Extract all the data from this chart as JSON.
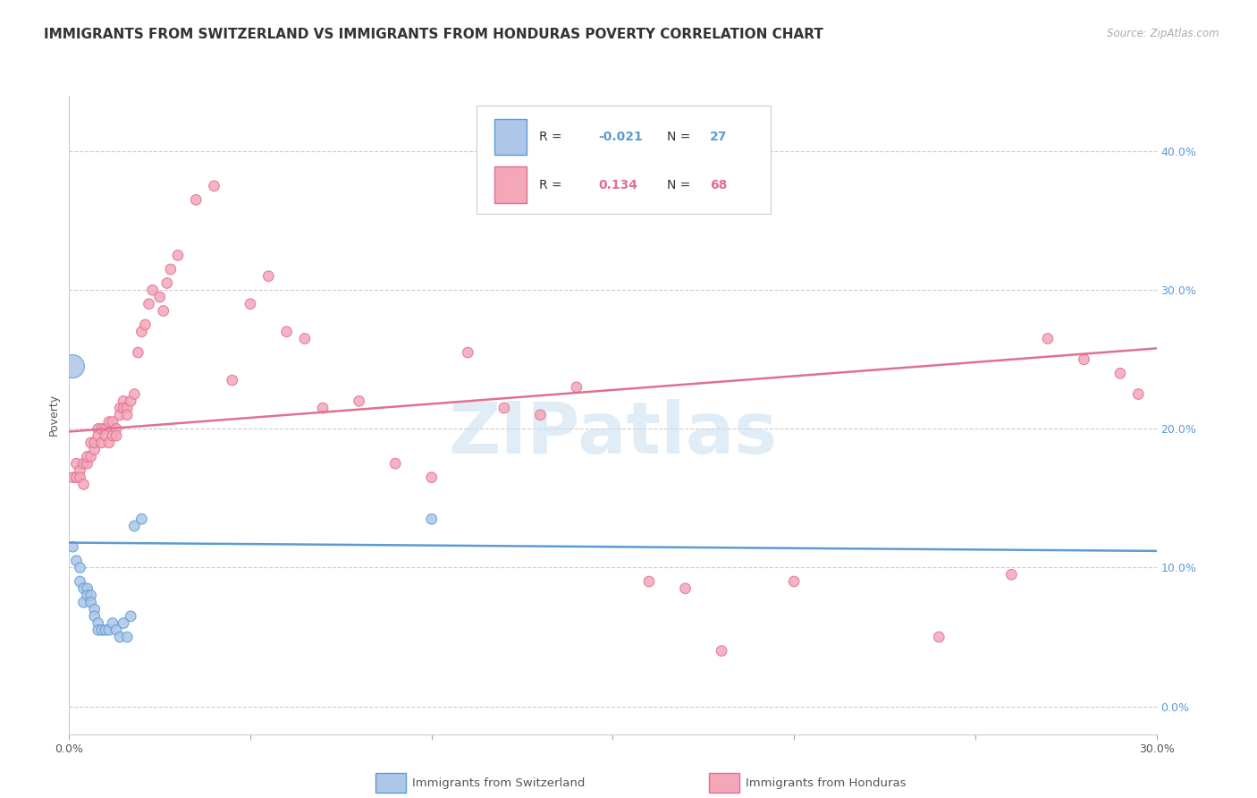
{
  "title": "IMMIGRANTS FROM SWITZERLAND VS IMMIGRANTS FROM HONDURAS POVERTY CORRELATION CHART",
  "source": "Source: ZipAtlas.com",
  "ylabel": "Poverty",
  "right_yticks": [
    "0.0%",
    "10.0%",
    "20.0%",
    "30.0%",
    "40.0%"
  ],
  "right_ytick_vals": [
    0.0,
    0.1,
    0.2,
    0.3,
    0.4
  ],
  "xlim": [
    0.0,
    0.3
  ],
  "ylim": [
    -0.02,
    0.44
  ],
  "watermark": "ZIPatlas",
  "blue_scatter_x": [
    0.001,
    0.002,
    0.003,
    0.003,
    0.004,
    0.004,
    0.005,
    0.005,
    0.006,
    0.006,
    0.007,
    0.007,
    0.008,
    0.008,
    0.009,
    0.01,
    0.011,
    0.012,
    0.013,
    0.014,
    0.015,
    0.016,
    0.017,
    0.018,
    0.02,
    0.001,
    0.1
  ],
  "blue_scatter_y": [
    0.115,
    0.105,
    0.1,
    0.09,
    0.085,
    0.075,
    0.085,
    0.08,
    0.08,
    0.075,
    0.07,
    0.065,
    0.06,
    0.055,
    0.055,
    0.055,
    0.055,
    0.06,
    0.055,
    0.05,
    0.06,
    0.05,
    0.065,
    0.13,
    0.135,
    0.245,
    0.135
  ],
  "blue_scatter_s": [
    70,
    70,
    70,
    70,
    70,
    70,
    70,
    70,
    70,
    70,
    70,
    70,
    70,
    70,
    70,
    70,
    70,
    70,
    70,
    70,
    70,
    70,
    70,
    70,
    70,
    350,
    70
  ],
  "pink_scatter_x": [
    0.001,
    0.002,
    0.002,
    0.003,
    0.003,
    0.004,
    0.004,
    0.005,
    0.005,
    0.006,
    0.006,
    0.007,
    0.007,
    0.008,
    0.008,
    0.009,
    0.009,
    0.01,
    0.01,
    0.011,
    0.011,
    0.012,
    0.012,
    0.013,
    0.013,
    0.014,
    0.014,
    0.015,
    0.015,
    0.016,
    0.016,
    0.017,
    0.018,
    0.019,
    0.02,
    0.021,
    0.022,
    0.023,
    0.025,
    0.026,
    0.027,
    0.028,
    0.03,
    0.035,
    0.04,
    0.045,
    0.05,
    0.055,
    0.06,
    0.065,
    0.07,
    0.08,
    0.09,
    0.1,
    0.11,
    0.12,
    0.13,
    0.14,
    0.16,
    0.17,
    0.18,
    0.2,
    0.24,
    0.26,
    0.27,
    0.28,
    0.29,
    0.295
  ],
  "pink_scatter_y": [
    0.165,
    0.175,
    0.165,
    0.17,
    0.165,
    0.16,
    0.175,
    0.175,
    0.18,
    0.18,
    0.19,
    0.185,
    0.19,
    0.2,
    0.195,
    0.2,
    0.19,
    0.2,
    0.195,
    0.205,
    0.19,
    0.205,
    0.195,
    0.2,
    0.195,
    0.215,
    0.21,
    0.22,
    0.215,
    0.215,
    0.21,
    0.22,
    0.225,
    0.255,
    0.27,
    0.275,
    0.29,
    0.3,
    0.295,
    0.285,
    0.305,
    0.315,
    0.325,
    0.365,
    0.375,
    0.235,
    0.29,
    0.31,
    0.27,
    0.265,
    0.215,
    0.22,
    0.175,
    0.165,
    0.255,
    0.215,
    0.21,
    0.23,
    0.09,
    0.085,
    0.04,
    0.09,
    0.05,
    0.095,
    0.265,
    0.25,
    0.24,
    0.225
  ],
  "pink_scatter_s": [
    70,
    70,
    70,
    70,
    70,
    70,
    70,
    70,
    70,
    70,
    70,
    70,
    70,
    70,
    70,
    70,
    70,
    70,
    70,
    70,
    70,
    70,
    70,
    70,
    70,
    70,
    70,
    70,
    70,
    70,
    70,
    70,
    70,
    70,
    70,
    70,
    70,
    70,
    70,
    70,
    70,
    70,
    70,
    70,
    70,
    70,
    70,
    70,
    70,
    70,
    70,
    70,
    70,
    70,
    70,
    70,
    70,
    70,
    70,
    70,
    70,
    70,
    70,
    70,
    70,
    70,
    70,
    70
  ],
  "blue_line_x": [
    0.0,
    0.3
  ],
  "blue_line_y": [
    0.118,
    0.112
  ],
  "pink_line_x": [
    0.0,
    0.3
  ],
  "pink_line_y": [
    0.198,
    0.258
  ],
  "blue_color": "#5b9bd5",
  "blue_scatter_color": "#aec6e8",
  "pink_color": "#e07090",
  "pink_scatter_color": "#f4a7b9",
  "grid_color": "#cccccc",
  "background_color": "#ffffff",
  "title_fontsize": 11,
  "axis_label_fontsize": 9,
  "tick_fontsize": 9,
  "legend_fontsize": 10,
  "legend_R1": "-0.021",
  "legend_N1": "27",
  "legend_R2": "0.134",
  "legend_N2": "68"
}
